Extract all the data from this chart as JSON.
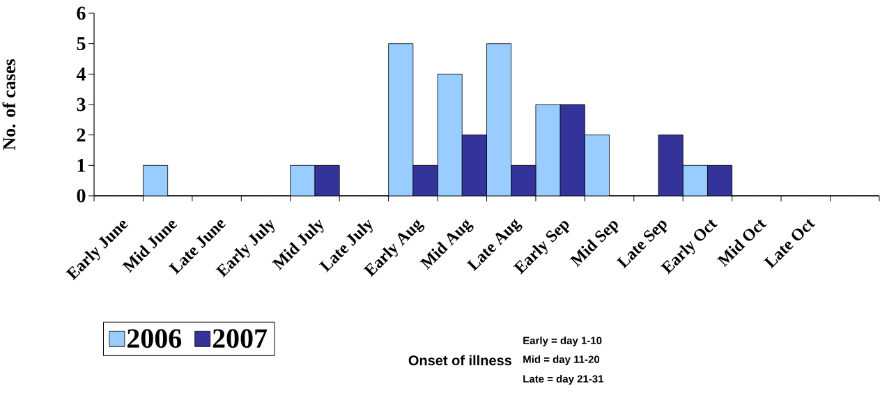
{
  "chart_data": {
    "type": "bar",
    "ylabel": "No. of cases",
    "categories": [
      "Early June",
      "Mid June",
      "Late June",
      "Early July",
      "Mid July",
      "Late July",
      "Early Aug",
      "Mid Aug",
      "Late Aug",
      "Early Sep",
      "Mid Sep",
      "Late Sep",
      "Early Oct",
      "Mid Oct",
      "Late Oct",
      null
    ],
    "series": [
      {
        "name": "2006",
        "color": "#99ccff",
        "values": [
          0,
          1,
          0,
          0,
          1,
          0,
          5,
          4,
          5,
          3,
          2,
          0,
          1,
          0,
          0,
          0
        ]
      },
      {
        "name": "2007",
        "color": "#333399",
        "values": [
          0,
          0,
          0,
          0,
          1,
          0,
          1,
          2,
          1,
          3,
          0,
          2,
          1,
          0,
          0,
          0
        ]
      }
    ],
    "ylim": [
      0,
      6
    ],
    "yticks": [
      0,
      1,
      2,
      3,
      4,
      5,
      6
    ],
    "grid": false,
    "legend": "bottom left",
    "annotations": [
      "Onset of illness",
      "Early = day 1-10",
      "Mid = day 11-20",
      "Late = day 21-31"
    ]
  }
}
